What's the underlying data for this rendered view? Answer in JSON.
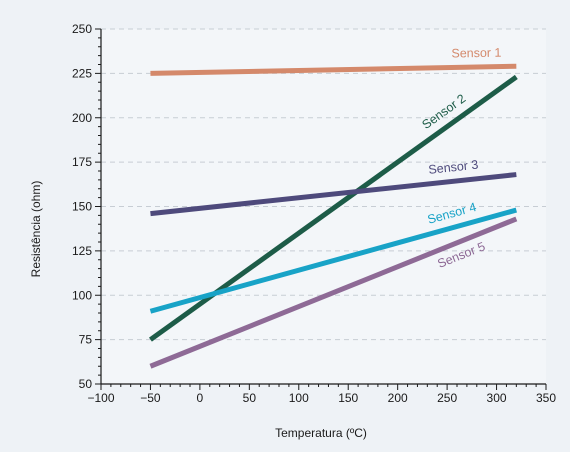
{
  "chart_data": {
    "type": "line",
    "xlabel": "Temperatura (ºC)",
    "ylabel": "Resistência (ohm)",
    "xlim": [
      -100,
      350
    ],
    "ylim": [
      50,
      250
    ],
    "xticks": [
      -100,
      -50,
      0,
      50,
      100,
      150,
      200,
      250,
      300,
      350
    ],
    "yticks": [
      50,
      75,
      100,
      125,
      150,
      175,
      200,
      225,
      250
    ],
    "grid": "horizontal dashed",
    "legend": "inline labels at line ends",
    "series": [
      {
        "name": "Sensor 1",
        "color": "#d4896b",
        "x": [
          -50,
          320
        ],
        "y": [
          225,
          229
        ]
      },
      {
        "name": "Sensor 2",
        "color": "#1d5c48",
        "x": [
          -50,
          320
        ],
        "y": [
          75,
          223
        ]
      },
      {
        "name": "Sensor 3",
        "color": "#4e4a7c",
        "x": [
          -50,
          320
        ],
        "y": [
          146,
          168
        ]
      },
      {
        "name": "Sensor 4",
        "color": "#18a3c7",
        "x": [
          -50,
          320
        ],
        "y": [
          91,
          148
        ]
      },
      {
        "name": "Sensor 5",
        "color": "#8e6a96",
        "x": [
          -50,
          320
        ],
        "y": [
          60,
          143
        ]
      }
    ]
  }
}
